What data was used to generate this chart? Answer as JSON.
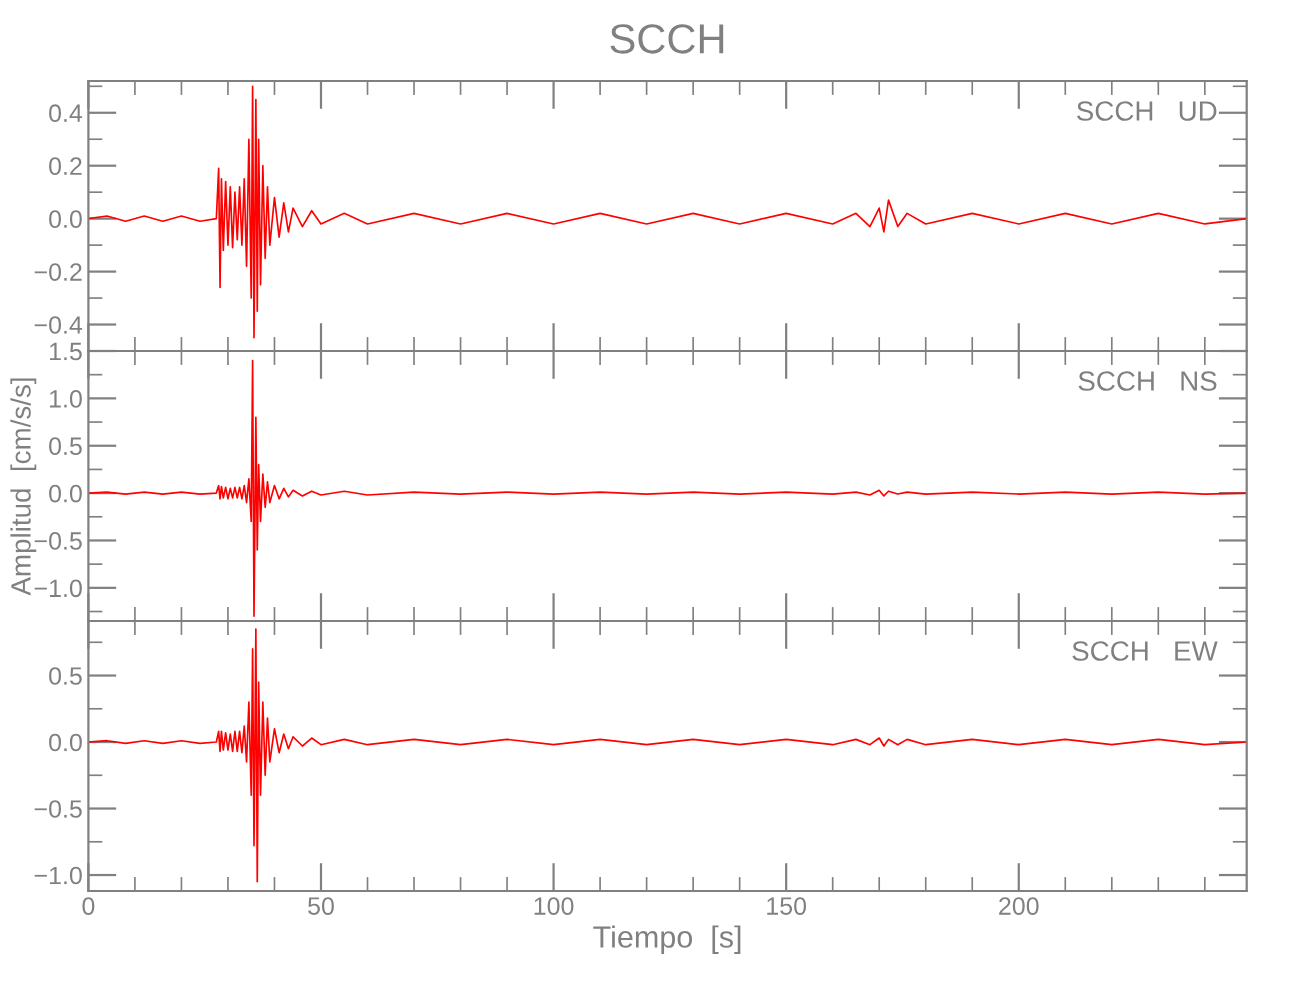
{
  "chart_data": [
    {
      "type": "line",
      "title": "SCCH",
      "annotations": [
        "SCCH   UD"
      ],
      "tick_labels": "y",
      "x": [
        0,
        4,
        8,
        12,
        16,
        20,
        24,
        27.5,
        28,
        28.3,
        28.6,
        29,
        29.5,
        30,
        30.5,
        31,
        31.5,
        32,
        32.5,
        33,
        33.5,
        34,
        34.5,
        35,
        35.3,
        35.6,
        36,
        36.3,
        36.6,
        37,
        37.5,
        38,
        38.5,
        39,
        40,
        41,
        42,
        43,
        44,
        46,
        48,
        50,
        55,
        60,
        70,
        80,
        90,
        100,
        110,
        120,
        130,
        140,
        150,
        160,
        165,
        168,
        170,
        171,
        172,
        174,
        176,
        180,
        190,
        200,
        210,
        220,
        230,
        240,
        249
      ],
      "series": [
        {
          "color": "#ff0000",
          "values": [
            0,
            0.01,
            -0.01,
            0.01,
            -0.01,
            0.01,
            -0.01,
            0,
            0.19,
            -0.26,
            0.15,
            -0.12,
            0.14,
            -0.1,
            0.12,
            -0.11,
            0.1,
            -0.08,
            0.12,
            -0.1,
            0.15,
            -0.18,
            0.3,
            -0.3,
            0.5,
            -0.45,
            0.45,
            -0.35,
            0.3,
            -0.25,
            0.2,
            -0.15,
            0.12,
            -0.1,
            0.08,
            -0.07,
            0.06,
            -0.05,
            0.04,
            -0.03,
            0.03,
            -0.02,
            0.02,
            -0.02,
            0.02,
            -0.02,
            0.02,
            -0.02,
            0.02,
            -0.02,
            0.02,
            -0.02,
            0.02,
            -0.02,
            0.02,
            -0.03,
            0.04,
            -0.05,
            0.07,
            -0.03,
            0.02,
            -0.02,
            0.02,
            -0.02,
            0.02,
            -0.02,
            0.02,
            -0.02,
            0
          ]
        }
      ],
      "xlim": [
        0,
        249
      ],
      "xticks": [
        0,
        {
          "value": 10,
          "label": null
        },
        {
          "value": 20,
          "label": null
        },
        {
          "value": 30,
          "label": null
        },
        {
          "value": 40,
          "label": null
        },
        50,
        {
          "value": 60,
          "label": null
        },
        {
          "value": 70,
          "label": null
        },
        {
          "value": 80,
          "label": null
        },
        {
          "value": 90,
          "label": null
        },
        100,
        {
          "value": 110,
          "label": null
        },
        {
          "value": 120,
          "label": null
        },
        {
          "value": 130,
          "label": null
        },
        {
          "value": 140,
          "label": null
        },
        150,
        {
          "value": 160,
          "label": null
        },
        {
          "value": 170,
          "label": null
        },
        {
          "value": 180,
          "label": null
        },
        {
          "value": 190,
          "label": null
        },
        200,
        {
          "value": 210,
          "label": null
        },
        {
          "value": 220,
          "label": null
        },
        {
          "value": 230,
          "label": null
        },
        {
          "value": 240,
          "label": null
        }
      ],
      "ylim": [
        -0.5,
        0.52
      ],
      "yticks": [
        {
          "value": -0.4,
          "label": "−0.4"
        },
        {
          "value": -0.3,
          "label": null
        },
        {
          "value": -0.2,
          "label": "−0.2"
        },
        {
          "value": -0.1,
          "label": null
        },
        {
          "value": 0,
          "label": "0.0"
        },
        {
          "value": 0.1,
          "label": null
        },
        0.2,
        {
          "value": 0.3,
          "label": null
        },
        0.4,
        {
          "value": 0.5,
          "label": null
        }
      ]
    },
    {
      "type": "line",
      "ylabel": "Amplitud  [cm/s/s]",
      "annotations": [
        "SCCH   NS"
      ],
      "tick_labels": "y",
      "x": [
        0,
        4,
        8,
        12,
        16,
        20,
        24,
        27.5,
        28,
        28.3,
        28.6,
        29,
        29.5,
        30,
        30.5,
        31,
        31.5,
        32,
        32.5,
        33,
        33.5,
        34,
        34.5,
        35,
        35.3,
        35.6,
        36,
        36.3,
        36.6,
        37,
        37.5,
        38,
        38.5,
        39,
        40,
        41,
        42,
        43,
        44,
        46,
        48,
        50,
        55,
        60,
        70,
        80,
        90,
        100,
        110,
        120,
        130,
        140,
        150,
        160,
        165,
        168,
        170,
        171,
        172,
        174,
        176,
        180,
        190,
        200,
        210,
        220,
        230,
        240,
        249
      ],
      "series": [
        {
          "color": "#ff0000",
          "values": [
            0,
            0.01,
            -0.01,
            0.01,
            -0.01,
            0.01,
            -0.01,
            0,
            0.08,
            -0.06,
            0.07,
            -0.05,
            0.06,
            -0.06,
            0.05,
            -0.05,
            0.06,
            -0.05,
            0.06,
            -0.06,
            0.08,
            -0.1,
            0.15,
            -0.3,
            1.4,
            -1.3,
            0.8,
            -0.6,
            0.3,
            -0.3,
            0.2,
            -0.15,
            0.12,
            -0.1,
            0.08,
            -0.06,
            0.05,
            -0.04,
            0.03,
            -0.03,
            0.02,
            -0.02,
            0.02,
            -0.02,
            0.01,
            -0.01,
            0.01,
            -0.01,
            0.01,
            -0.01,
            0.01,
            -0.01,
            0.01,
            -0.01,
            0.01,
            -0.02,
            0.03,
            -0.03,
            0.02,
            -0.01,
            0.01,
            -0.01,
            0.01,
            -0.01,
            0.01,
            -0.01,
            0.01,
            -0.01,
            0
          ]
        }
      ],
      "xlim": [
        0,
        249
      ],
      "xticks": [
        0,
        {
          "value": 10,
          "label": null
        },
        {
          "value": 20,
          "label": null
        },
        {
          "value": 30,
          "label": null
        },
        {
          "value": 40,
          "label": null
        },
        50,
        {
          "value": 60,
          "label": null
        },
        {
          "value": 70,
          "label": null
        },
        {
          "value": 80,
          "label": null
        },
        {
          "value": 90,
          "label": null
        },
        100,
        {
          "value": 110,
          "label": null
        },
        {
          "value": 120,
          "label": null
        },
        {
          "value": 130,
          "label": null
        },
        {
          "value": 140,
          "label": null
        },
        150,
        {
          "value": 160,
          "label": null
        },
        {
          "value": 170,
          "label": null
        },
        {
          "value": 180,
          "label": null
        },
        {
          "value": 190,
          "label": null
        },
        200,
        {
          "value": 210,
          "label": null
        },
        {
          "value": 220,
          "label": null
        },
        {
          "value": 230,
          "label": null
        },
        {
          "value": 240,
          "label": null
        }
      ],
      "ylim": [
        -1.35,
        1.5
      ],
      "yticks": [
        {
          "value": -1.25,
          "label": null
        },
        {
          "value": -1.0,
          "label": "−1.0"
        },
        {
          "value": -0.75,
          "label": null
        },
        {
          "value": -0.5,
          "label": "−0.5"
        },
        {
          "value": -0.25,
          "label": null
        },
        {
          "value": 0,
          "label": "0.0"
        },
        {
          "value": 0.25,
          "label": null
        },
        0.5,
        {
          "value": 0.75,
          "label": null
        },
        {
          "value": 1,
          "label": "1.0"
        },
        {
          "value": 1.25,
          "label": null
        },
        1.5
      ]
    },
    {
      "type": "line",
      "xlabel": "Tiempo  [s]",
      "annotations": [
        "SCCH   EW"
      ],
      "x": [
        0,
        4,
        8,
        12,
        16,
        20,
        24,
        27.5,
        28,
        28.3,
        28.6,
        29,
        29.5,
        30,
        30.5,
        31,
        31.5,
        32,
        32.5,
        33,
        33.5,
        34,
        34.5,
        35,
        35.3,
        35.6,
        36,
        36.3,
        36.6,
        37,
        37.5,
        38,
        38.5,
        39,
        40,
        41,
        42,
        43,
        44,
        46,
        48,
        50,
        55,
        60,
        70,
        80,
        90,
        100,
        110,
        120,
        130,
        140,
        150,
        160,
        165,
        168,
        170,
        171,
        172,
        174,
        176,
        180,
        190,
        200,
        210,
        220,
        230,
        240,
        249
      ],
      "series": [
        {
          "color": "#ff0000",
          "values": [
            0,
            0.01,
            -0.01,
            0.01,
            -0.01,
            0.01,
            -0.01,
            0,
            0.08,
            -0.07,
            0.08,
            -0.06,
            0.07,
            -0.06,
            0.06,
            -0.07,
            0.08,
            -0.07,
            0.08,
            -0.08,
            0.12,
            -0.15,
            0.3,
            -0.4,
            0.7,
            -0.78,
            0.85,
            -1.05,
            0.45,
            -0.4,
            0.3,
            -0.25,
            0.18,
            -0.15,
            0.1,
            -0.08,
            0.06,
            -0.05,
            0.04,
            -0.03,
            0.03,
            -0.02,
            0.02,
            -0.02,
            0.02,
            -0.02,
            0.02,
            -0.02,
            0.02,
            -0.02,
            0.02,
            -0.02,
            0.02,
            -0.02,
            0.02,
            -0.02,
            0.03,
            -0.03,
            0.02,
            -0.02,
            0.02,
            -0.02,
            0.02,
            -0.02,
            0.02,
            -0.02,
            0.02,
            -0.02,
            0
          ]
        }
      ],
      "xlim": [
        0,
        249
      ],
      "xticks": [
        0,
        {
          "value": 10,
          "label": null
        },
        {
          "value": 20,
          "label": null
        },
        {
          "value": 30,
          "label": null
        },
        {
          "value": 40,
          "label": null
        },
        50,
        {
          "value": 60,
          "label": null
        },
        {
          "value": 70,
          "label": null
        },
        {
          "value": 80,
          "label": null
        },
        {
          "value": 90,
          "label": null
        },
        100,
        {
          "value": 110,
          "label": null
        },
        {
          "value": 120,
          "label": null
        },
        {
          "value": 130,
          "label": null
        },
        {
          "value": 140,
          "label": null
        },
        150,
        {
          "value": 160,
          "label": null
        },
        {
          "value": 170,
          "label": null
        },
        {
          "value": 180,
          "label": null
        },
        {
          "value": 190,
          "label": null
        },
        200,
        {
          "value": 210,
          "label": null
        },
        {
          "value": 220,
          "label": null
        },
        {
          "value": 230,
          "label": null
        },
        {
          "value": 240,
          "label": null
        }
      ],
      "ylim": [
        -1.12,
        0.91
      ],
      "yticks": [
        {
          "value": -1.0,
          "label": "−1.0"
        },
        {
          "value": -0.75,
          "label": null
        },
        {
          "value": -0.5,
          "label": "−0.5"
        },
        {
          "value": -0.25,
          "label": null
        },
        {
          "value": 0,
          "label": "0.0"
        },
        {
          "value": 0.25,
          "label": null
        },
        0.5,
        {
          "value": 0.75,
          "label": null
        }
      ]
    }
  ]
}
